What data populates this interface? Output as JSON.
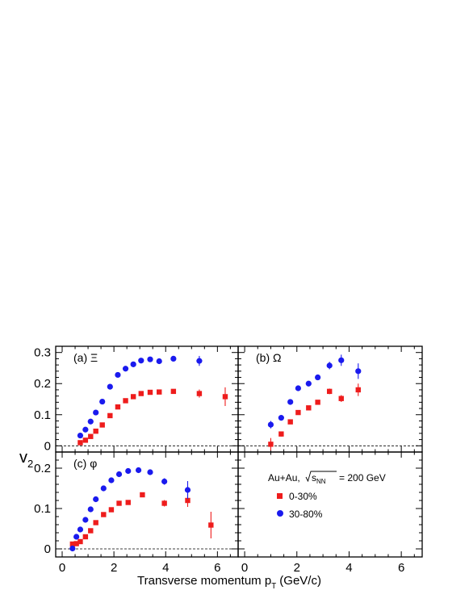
{
  "figure": {
    "y_axis_label": "v",
    "y_axis_label_sub": "2",
    "x_axis_label_main": "Transverse momentum p",
    "x_axis_label_sub": "T",
    "x_axis_label_unit": "(GeV/c)",
    "legend": {
      "header_system": "Au+Au,",
      "header_s": "s",
      "header_s_sub": "NN",
      "header_energy": "= 200 GeV",
      "entries": [
        {
          "label": "0-30%",
          "marker": "square",
          "color": "#ee1c1c"
        },
        {
          "label": "30-80%",
          "marker": "circle",
          "color": "#1a1aee"
        }
      ]
    },
    "colors": {
      "central": "#ee1c1c",
      "peripheral": "#1a1aee"
    }
  },
  "chart_data": [
    {
      "panel": "(a) Ξ",
      "type": "scatter",
      "xlim": [
        -0.25,
        6.8
      ],
      "ylim": [
        -0.02,
        0.32
      ],
      "x_ticks": [
        "0",
        "2",
        "4",
        "6"
      ],
      "y_ticks": [
        "0",
        "0.1",
        "0.2",
        "0.3"
      ],
      "zero_line": true,
      "series": [
        {
          "name": "0-30%",
          "marker": "square",
          "color": "#ee1c1c",
          "x": [
            0.7,
            0.9,
            1.1,
            1.3,
            1.55,
            1.85,
            2.15,
            2.45,
            2.75,
            3.05,
            3.4,
            3.75,
            4.3,
            5.3,
            6.3
          ],
          "y": [
            0.01,
            0.018,
            0.03,
            0.047,
            0.067,
            0.097,
            0.125,
            0.145,
            0.158,
            0.168,
            0.172,
            0.173,
            0.175,
            0.168,
            0.158
          ],
          "err": [
            0.003,
            0.003,
            0.003,
            0.003,
            0.003,
            0.003,
            0.003,
            0.003,
            0.004,
            0.004,
            0.004,
            0.005,
            0.006,
            0.013,
            0.03
          ]
        },
        {
          "name": "30-80%",
          "marker": "circle",
          "color": "#1a1aee",
          "x": [
            0.7,
            0.9,
            1.1,
            1.3,
            1.55,
            1.85,
            2.15,
            2.45,
            2.75,
            3.05,
            3.4,
            3.75,
            4.3,
            5.3
          ],
          "y": [
            0.033,
            0.052,
            0.078,
            0.107,
            0.142,
            0.19,
            0.228,
            0.248,
            0.262,
            0.274,
            0.278,
            0.272,
            0.28,
            0.273
          ],
          "err": [
            0.003,
            0.003,
            0.003,
            0.003,
            0.003,
            0.003,
            0.003,
            0.003,
            0.004,
            0.004,
            0.005,
            0.006,
            0.007,
            0.016
          ]
        }
      ]
    },
    {
      "panel": "(b) Ω",
      "type": "scatter",
      "xlim": [
        -0.25,
        6.8
      ],
      "ylim": [
        -0.02,
        0.32
      ],
      "x_ticks": [
        "0",
        "2",
        "4",
        "6"
      ],
      "y_ticks": [],
      "zero_line": true,
      "series": [
        {
          "name": "0-30%",
          "marker": "square",
          "color": "#ee1c1c",
          "x": [
            1.0,
            1.4,
            1.75,
            2.05,
            2.45,
            2.8,
            3.25,
            3.7,
            4.35
          ],
          "y": [
            0.005,
            0.038,
            0.077,
            0.107,
            0.122,
            0.14,
            0.175,
            0.152,
            0.18
          ],
          "err": [
            0.02,
            0.008,
            0.006,
            0.006,
            0.006,
            0.007,
            0.009,
            0.011,
            0.02
          ]
        },
        {
          "name": "30-80%",
          "marker": "circle",
          "color": "#1a1aee",
          "x": [
            1.0,
            1.4,
            1.75,
            2.05,
            2.45,
            2.8,
            3.25,
            3.7,
            4.35
          ],
          "y": [
            0.068,
            0.09,
            0.141,
            0.185,
            0.2,
            0.22,
            0.258,
            0.275,
            0.24
          ],
          "err": [
            0.012,
            0.007,
            0.006,
            0.006,
            0.006,
            0.008,
            0.012,
            0.018,
            0.025
          ]
        }
      ]
    },
    {
      "panel": "(c) φ",
      "type": "scatter",
      "xlim": [
        -0.25,
        6.8
      ],
      "ylim": [
        -0.02,
        0.24
      ],
      "x_ticks": [
        "0",
        "2",
        "4",
        "6"
      ],
      "y_ticks": [
        "0",
        "0.1",
        "0.2"
      ],
      "zero_line": true,
      "series": [
        {
          "name": "0-30%",
          "marker": "square",
          "color": "#ee1c1c",
          "x": [
            0.4,
            0.55,
            0.7,
            0.9,
            1.1,
            1.3,
            1.6,
            1.9,
            2.2,
            2.55,
            3.1,
            3.95,
            4.85,
            5.75
          ],
          "y": [
            0.012,
            0.013,
            0.018,
            0.03,
            0.045,
            0.065,
            0.085,
            0.097,
            0.113,
            0.115,
            0.134,
            0.113,
            0.12,
            0.059
          ],
          "err": [
            0.002,
            0.002,
            0.002,
            0.002,
            0.002,
            0.003,
            0.003,
            0.003,
            0.004,
            0.004,
            0.005,
            0.008,
            0.016,
            0.033
          ]
        },
        {
          "name": "30-80%",
          "marker": "circle",
          "color": "#1a1aee",
          "x": [
            0.4,
            0.55,
            0.7,
            0.9,
            1.1,
            1.3,
            1.6,
            1.9,
            2.2,
            2.55,
            2.95,
            3.4,
            3.95,
            4.85
          ],
          "y": [
            0.001,
            0.03,
            0.048,
            0.072,
            0.098,
            0.123,
            0.15,
            0.17,
            0.185,
            0.193,
            0.195,
            0.19,
            0.167,
            0.146
          ],
          "err": [
            0.003,
            0.003,
            0.003,
            0.003,
            0.003,
            0.003,
            0.004,
            0.004,
            0.004,
            0.005,
            0.006,
            0.006,
            0.008,
            0.022
          ]
        }
      ]
    },
    {
      "panel": "",
      "type": "scatter",
      "xlim": [
        -0.25,
        6.8
      ],
      "ylim": [
        -0.02,
        0.24
      ],
      "x_ticks": [
        "0",
        "2",
        "4",
        "6"
      ],
      "y_ticks": [],
      "zero_line": false,
      "series": []
    }
  ]
}
